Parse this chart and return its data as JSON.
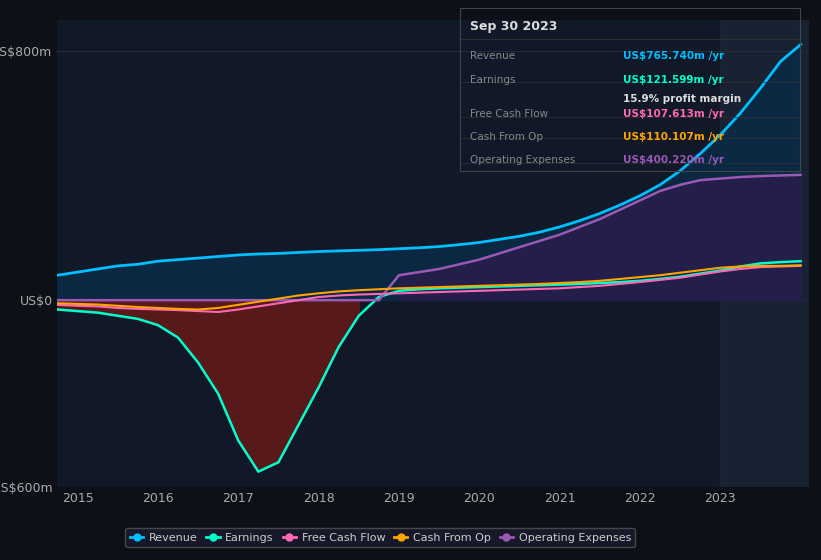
{
  "background_color": "#0d1117",
  "plot_bg_color": "#111827",
  "years": [
    2014.75,
    2015.0,
    2015.25,
    2015.5,
    2015.75,
    2016.0,
    2016.25,
    2016.5,
    2016.75,
    2017.0,
    2017.25,
    2017.5,
    2017.75,
    2018.0,
    2018.25,
    2018.5,
    2018.75,
    2019.0,
    2019.25,
    2019.5,
    2019.75,
    2020.0,
    2020.25,
    2020.5,
    2020.75,
    2021.0,
    2021.25,
    2021.5,
    2021.75,
    2022.0,
    2022.25,
    2022.5,
    2022.75,
    2023.0,
    2023.25,
    2023.5,
    2023.75,
    2024.0
  ],
  "revenue": [
    80,
    90,
    100,
    110,
    115,
    125,
    130,
    135,
    140,
    145,
    148,
    150,
    153,
    156,
    158,
    160,
    162,
    165,
    168,
    172,
    178,
    185,
    195,
    205,
    218,
    235,
    255,
    278,
    305,
    335,
    370,
    415,
    470,
    530,
    600,
    680,
    766,
    820
  ],
  "earnings": [
    -30,
    -35,
    -40,
    -50,
    -60,
    -80,
    -120,
    -200,
    -300,
    -450,
    -550,
    -520,
    -400,
    -280,
    -150,
    -50,
    10,
    30,
    35,
    38,
    40,
    42,
    44,
    46,
    48,
    50,
    52,
    55,
    58,
    62,
    68,
    75,
    85,
    95,
    108,
    118,
    122,
    125
  ],
  "free_cash_flow": [
    -15,
    -18,
    -20,
    -25,
    -28,
    -30,
    -32,
    -35,
    -38,
    -30,
    -20,
    -10,
    0,
    10,
    15,
    18,
    20,
    22,
    24,
    26,
    28,
    30,
    32,
    34,
    36,
    38,
    42,
    46,
    52,
    58,
    65,
    72,
    82,
    92,
    100,
    106,
    108,
    110
  ],
  "cash_from_op": [
    -10,
    -12,
    -14,
    -18,
    -22,
    -25,
    -28,
    -30,
    -25,
    -15,
    -5,
    5,
    15,
    22,
    28,
    32,
    35,
    38,
    40,
    42,
    44,
    46,
    48,
    50,
    52,
    55,
    58,
    62,
    68,
    74,
    80,
    88,
    96,
    104,
    108,
    110,
    110,
    112
  ],
  "op_expenses": [
    0,
    0,
    0,
    0,
    0,
    0,
    0,
    0,
    0,
    0,
    0,
    0,
    0,
    0,
    0,
    0,
    0,
    80,
    90,
    100,
    115,
    130,
    150,
    170,
    190,
    210,
    235,
    260,
    290,
    320,
    350,
    370,
    385,
    390,
    395,
    398,
    400,
    402
  ],
  "revenue_color": "#00bfff",
  "earnings_color": "#00ffcc",
  "free_cash_flow_color": "#ff69b4",
  "cash_from_op_color": "#ffa500",
  "op_expenses_color": "#9b59b6",
  "ylim_min": -600,
  "ylim_max": 900,
  "yticks": [
    -600,
    0,
    800
  ],
  "ytick_labels": [
    "-US$600m",
    "US$0",
    "US$800m"
  ],
  "xtick_years": [
    2015,
    2016,
    2017,
    2018,
    2019,
    2020,
    2021,
    2022,
    2023
  ],
  "grid_color": "#2a2a3a",
  "info_box": {
    "date": "Sep 30 2023",
    "revenue_label": "Revenue",
    "revenue_value": "US$765.740m /yr",
    "earnings_label": "Earnings",
    "earnings_value": "US$121.599m /yr",
    "margin_text": "15.9% profit margin",
    "fcf_label": "Free Cash Flow",
    "fcf_value": "US$107.613m /yr",
    "cfop_label": "Cash From Op",
    "cfop_value": "US$110.107m /yr",
    "opex_label": "Operating Expenses",
    "opex_value": "US$400.220m /yr"
  },
  "legend_items": [
    {
      "label": "Revenue",
      "color": "#00bfff"
    },
    {
      "label": "Earnings",
      "color": "#00ffcc"
    },
    {
      "label": "Free Cash Flow",
      "color": "#ff69b4"
    },
    {
      "label": "Cash From Op",
      "color": "#ffa500"
    },
    {
      "label": "Operating Expenses",
      "color": "#9b59b6"
    }
  ]
}
